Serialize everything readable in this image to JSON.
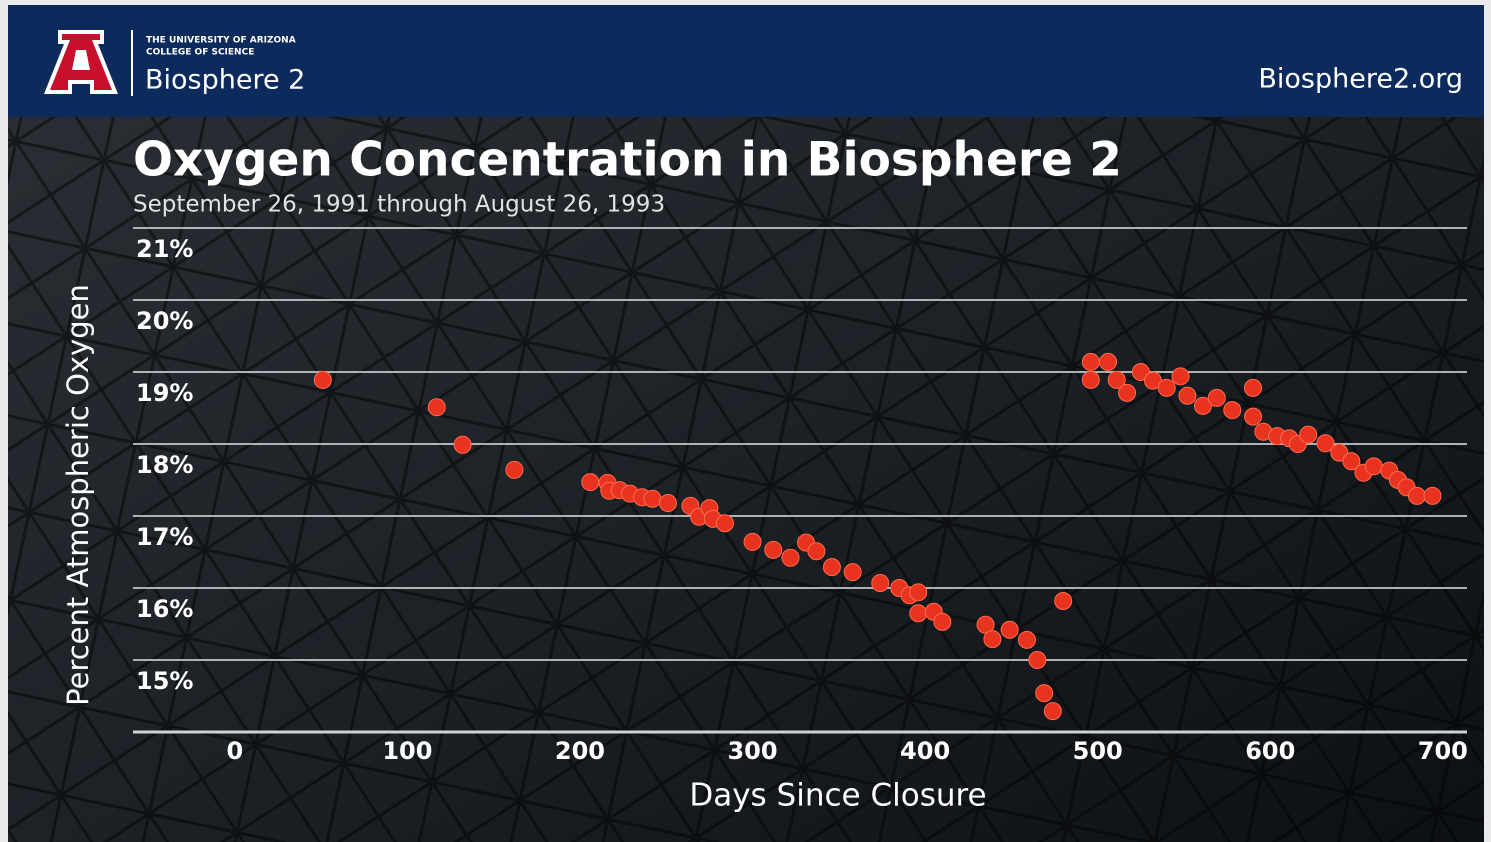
{
  "header": {
    "university": "THE UNIVERSITY OF ARIZONA",
    "college": "COLLEGE OF SCIENCE",
    "brand": "Biosphere 2",
    "website": "Biosphere2.org"
  },
  "chart_data": {
    "type": "scatter",
    "title": "Oxygen Concentration in Biosphere 2",
    "subtitle": "September 26, 1991 through August 26, 1993",
    "x_label": "Days Since Closure",
    "y_label": "Percent Atmospheric Oxygen",
    "color": "#e8341f",
    "grid": true,
    "xlim": [
      -59,
      714
    ],
    "xticks": [
      0,
      100,
      200,
      300,
      400,
      500,
      600,
      700
    ],
    "ylim": [
      14,
      21
    ],
    "yticks": [
      {
        "value": 15,
        "label": "15%"
      },
      {
        "value": 16,
        "label": "16%"
      },
      {
        "value": 17,
        "label": "17%"
      },
      {
        "value": 18,
        "label": "18%"
      },
      {
        "value": 19,
        "label": "19%"
      },
      {
        "value": 20,
        "label": "20%"
      },
      {
        "value": 21,
        "label": "21%"
      }
    ],
    "x": [
      51,
      117,
      132,
      162,
      206,
      216,
      217,
      223,
      229,
      236,
      242,
      251,
      264,
      269,
      275,
      277,
      284,
      300,
      312,
      322,
      331,
      337,
      346,
      358,
      374,
      385,
      391,
      396,
      396,
      405,
      410,
      435,
      439,
      449,
      459,
      465,
      469,
      474,
      480,
      496,
      496,
      506,
      511,
      517,
      525,
      532,
      540,
      548,
      552,
      561,
      569,
      578,
      590,
      590,
      596,
      604,
      611,
      616,
      622,
      632,
      640,
      647,
      654,
      660,
      669,
      674,
      679,
      685,
      694
    ],
    "y": [
      18.89,
      18.51,
      17.99,
      17.64,
      17.47,
      17.46,
      17.35,
      17.36,
      17.31,
      17.26,
      17.24,
      17.18,
      17.14,
      16.99,
      17.11,
      16.96,
      16.9,
      16.64,
      16.53,
      16.42,
      16.63,
      16.51,
      16.29,
      16.22,
      16.07,
      16.0,
      15.9,
      15.94,
      15.65,
      15.67,
      15.53,
      15.49,
      15.29,
      15.42,
      15.28,
      15.0,
      14.54,
      14.29,
      15.82,
      19.14,
      18.89,
      19.14,
      18.89,
      18.71,
      19.0,
      18.88,
      18.78,
      18.94,
      18.67,
      18.53,
      18.64,
      18.47,
      18.78,
      18.38,
      18.17,
      18.11,
      18.08,
      18.0,
      18.13,
      18.01,
      17.88,
      17.76,
      17.6,
      17.69,
      17.63,
      17.5,
      17.4,
      17.28,
      17.28
    ]
  }
}
